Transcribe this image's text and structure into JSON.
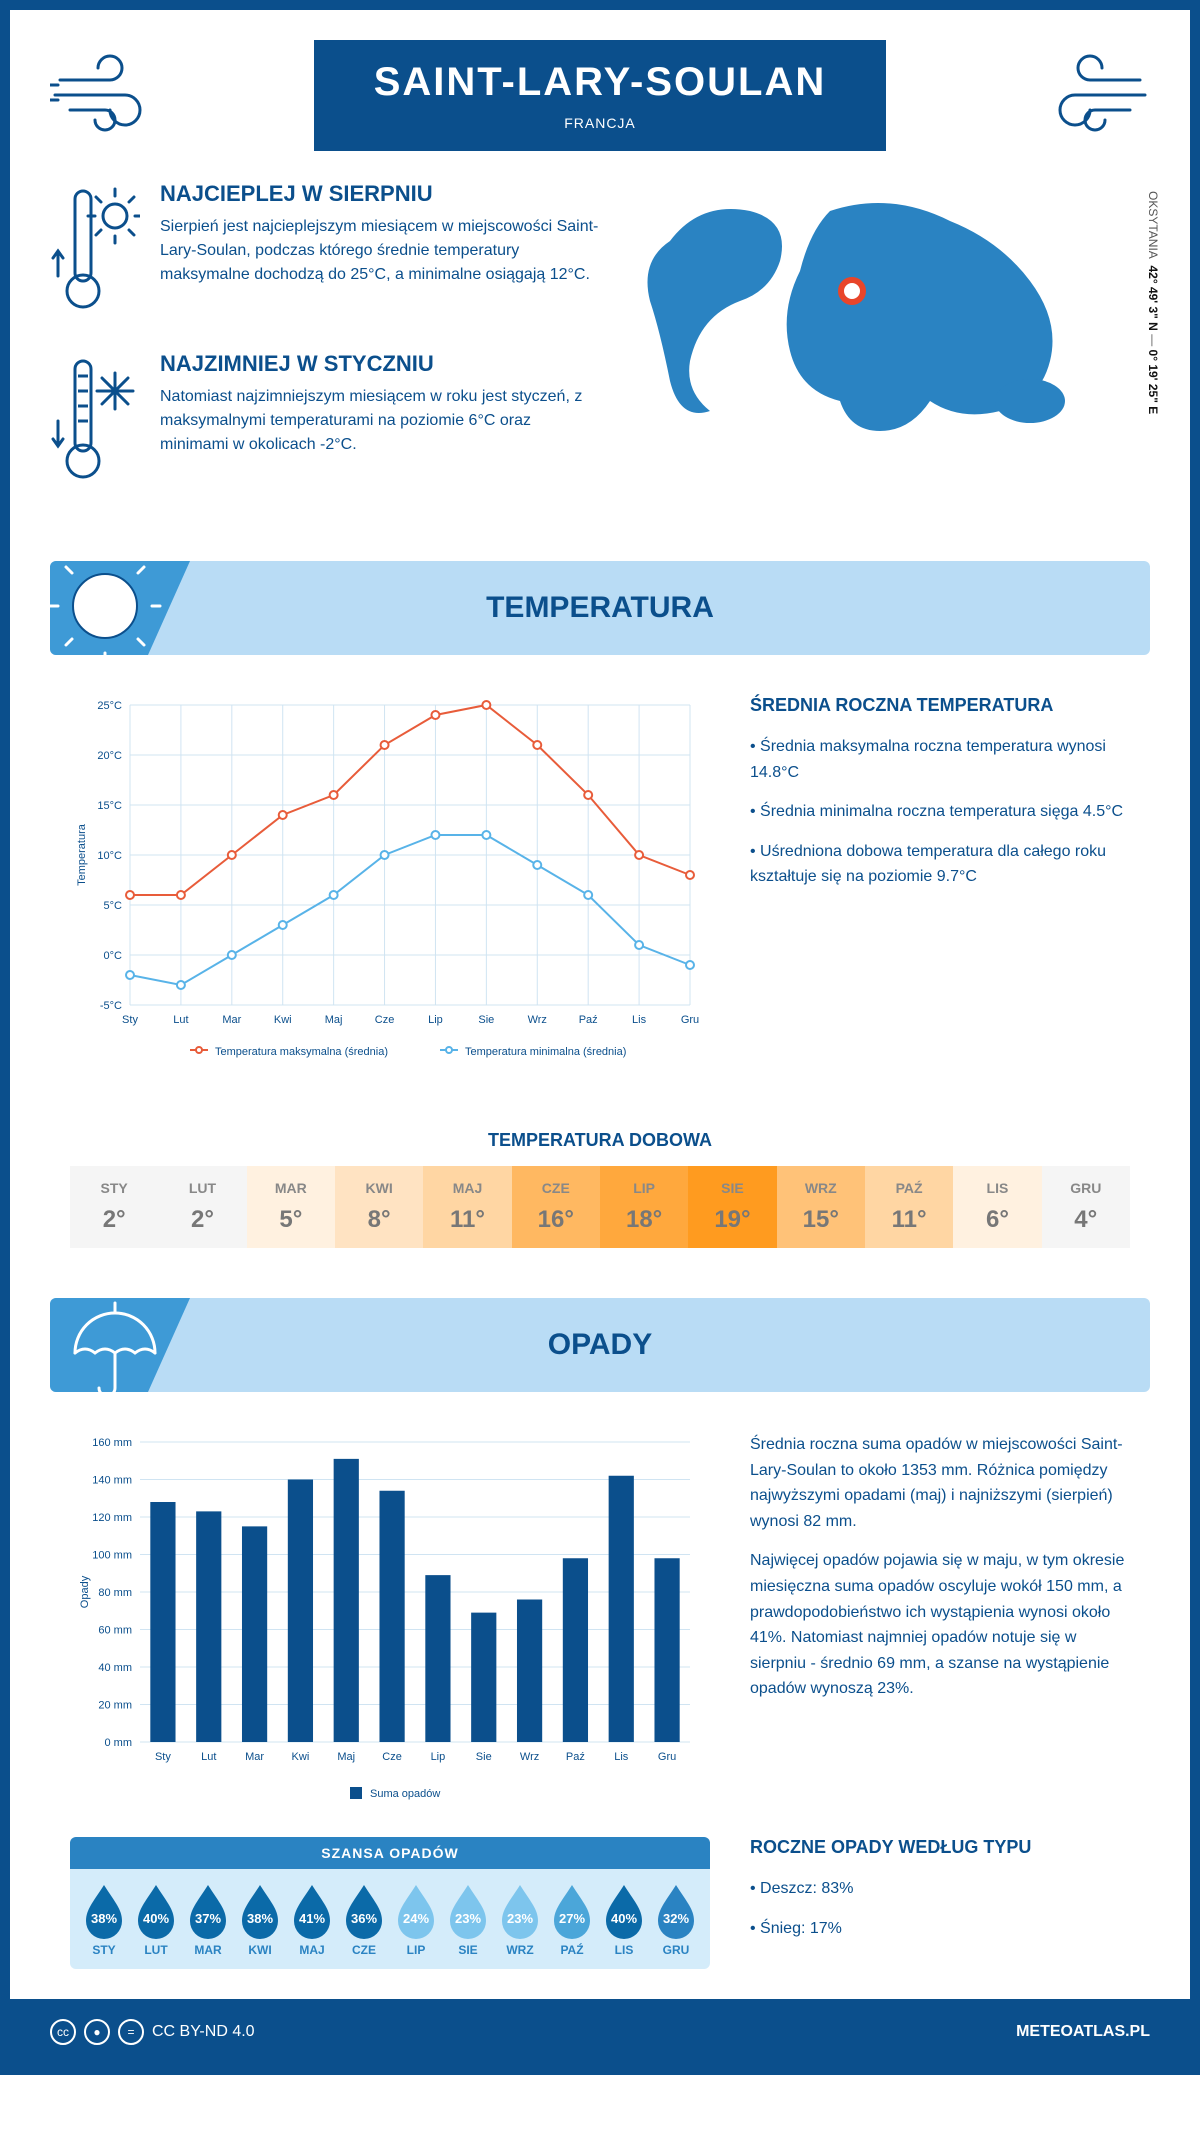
{
  "accent": "#0b4f8c",
  "light_blue": "#b9dcf5",
  "mid_blue": "#3e9ad6",
  "header": {
    "city": "SAINT-LARY-SOULAN",
    "country": "FRANCJA"
  },
  "coords": {
    "region": "OKSYTANIA",
    "lat": "42° 49' 3\" N",
    "lon": "0° 19' 25\" E"
  },
  "warm": {
    "title": "NAJCIEPLEJ W SIERPNIU",
    "text": "Sierpień jest najcieplejszym miesiącem w miejscowości Saint-Lary-Soulan, podczas którego średnie temperatury maksymalne dochodzą do 25°C, a minimalne osiągają 12°C."
  },
  "cold": {
    "title": "NAJZIMNIEJ W STYCZNIU",
    "text": "Natomiast najzimniejszym miesiącem w roku jest styczeń, z maksymalnymi temperaturami na poziomie 6°C oraz minimami w okolicach -2°C."
  },
  "temp_section_title": "TEMPERATURA",
  "temp_chart": {
    "type": "line",
    "months": [
      "Sty",
      "Lut",
      "Mar",
      "Kwi",
      "Maj",
      "Cze",
      "Lip",
      "Sie",
      "Wrz",
      "Paź",
      "Lis",
      "Gru"
    ],
    "max": [
      6,
      6,
      10,
      14,
      16,
      21,
      24,
      25,
      21,
      16,
      10,
      8
    ],
    "min": [
      -2,
      -3,
      0,
      3,
      6,
      10,
      12,
      12,
      9,
      6,
      1,
      -1
    ],
    "max_color": "#e85c3a",
    "min_color": "#58b3e8",
    "grid_color": "#d0e4f2",
    "ylabel": "Temperatura",
    "ylim": [
      -5,
      25
    ],
    "yticks": [
      "-5°C",
      "0°C",
      "5°C",
      "10°C",
      "15°C",
      "20°C",
      "25°C"
    ],
    "legend_max": "Temperatura maksymalna (średnia)",
    "legend_min": "Temperatura minimalna (średnia)"
  },
  "temp_stats": {
    "title": "ŚREDNIA ROCZNA TEMPERATURA",
    "p1": "• Średnia maksymalna roczna temperatura wynosi 14.8°C",
    "p2": "• Średnia minimalna roczna temperatura sięga 4.5°C",
    "p3": "• Uśredniona dobowa temperatura dla całego roku kształtuje się na poziomie 9.7°C"
  },
  "dobowa_title": "TEMPERATURA DOBOWA",
  "dobowa": {
    "months": [
      "STY",
      "LUT",
      "MAR",
      "KWI",
      "MAJ",
      "CZE",
      "LIP",
      "SIE",
      "WRZ",
      "PAŹ",
      "LIS",
      "GRU"
    ],
    "values": [
      "2°",
      "2°",
      "5°",
      "8°",
      "11°",
      "16°",
      "18°",
      "19°",
      "15°",
      "11°",
      "6°",
      "4°"
    ],
    "colors": [
      "#f5f5f5",
      "#f5f5f5",
      "#fff1e0",
      "#ffe3c2",
      "#ffd6a3",
      "#ffb861",
      "#ffa83d",
      "#ff9b1f",
      "#ffc278",
      "#ffd6a3",
      "#fff1e0",
      "#f5f5f5"
    ]
  },
  "opady_section_title": "OPADY",
  "opady_chart": {
    "type": "bar",
    "months": [
      "Sty",
      "Lut",
      "Mar",
      "Kwi",
      "Maj",
      "Cze",
      "Lip",
      "Sie",
      "Wrz",
      "Paź",
      "Lis",
      "Gru"
    ],
    "values": [
      128,
      123,
      115,
      140,
      151,
      134,
      89,
      69,
      76,
      98,
      142,
      98
    ],
    "bar_color": "#0b4f8c",
    "grid_color": "#d0e4f2",
    "ylabel": "Opady",
    "ylim": [
      0,
      160
    ],
    "yticks": [
      "0 mm",
      "20 mm",
      "40 mm",
      "60 mm",
      "80 mm",
      "100 mm",
      "120 mm",
      "140 mm",
      "160 mm"
    ],
    "legend": "Suma opadów"
  },
  "opady_text": {
    "p1": "Średnia roczna suma opadów w miejscowości Saint-Lary-Soulan to około 1353 mm. Różnica pomiędzy najwyższymi opadami (maj) i najniższymi (sierpień) wynosi 82 mm.",
    "p2": "Najwięcej opadów pojawia się w maju, w tym okresie miesięczna suma opadów oscyluje wokół 150 mm, a prawdopodobieństwo ich wystąpienia wynosi około 41%. Natomiast najmniej opadów notuje się w sierpniu - średnio 69 mm, a szanse na wystąpienie opadów wynoszą 23%."
  },
  "szansa": {
    "title": "SZANSA OPADÓW",
    "months": [
      "STY",
      "LUT",
      "MAR",
      "KWI",
      "MAJ",
      "CZE",
      "LIP",
      "SIE",
      "WRZ",
      "PAŹ",
      "LIS",
      "GRU"
    ],
    "values": [
      "38%",
      "40%",
      "37%",
      "38%",
      "41%",
      "36%",
      "24%",
      "23%",
      "23%",
      "27%",
      "40%",
      "32%"
    ],
    "colors": [
      "#0b6aa8",
      "#0b6aa8",
      "#0b6aa8",
      "#0b6aa8",
      "#0b6aa8",
      "#0b6aa8",
      "#7dc5ed",
      "#7dc5ed",
      "#7dc5ed",
      "#4ba6d9",
      "#0b6aa8",
      "#2a83c2"
    ]
  },
  "opady_typ": {
    "title": "ROCZNE OPADY WEDŁUG TYPU",
    "rain": "• Deszcz: 83%",
    "snow": "• Śnieg: 17%"
  },
  "footer": {
    "license": "CC BY-ND 4.0",
    "site": "METEOATLAS.PL"
  }
}
